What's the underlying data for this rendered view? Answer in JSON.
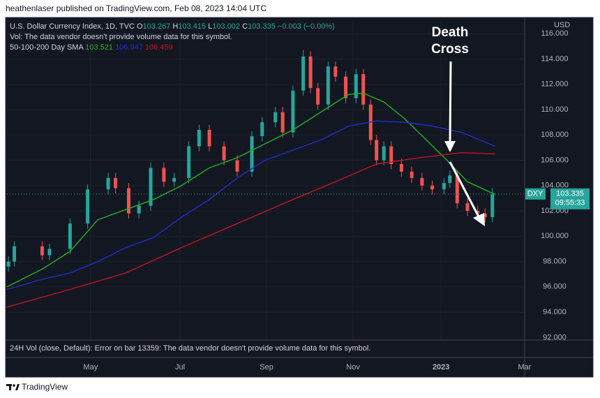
{
  "header": "heathenlaser published on TradingView.com, Feb 08, 2023 14:04 UTC",
  "footer": "TradingView",
  "chart_data": {
    "type": "candlestick",
    "symbol_title": "U.S. Dollar Currency Index, 1D, TVC",
    "ohlc_legend": [
      {
        "label": "O",
        "value": 103.267
      },
      {
        "label": "H",
        "value": 103.415
      },
      {
        "label": "L",
        "value": 103.002
      },
      {
        "label": "C",
        "value": 103.335
      }
    ],
    "change": "−0.003 (−0.00%)",
    "volume_note": "Vol: The data vendor doesn't provide volume data for this symbol.",
    "sma_label": "50-100-200 Day SMA",
    "volume_pane": "24H Vol (close, Default): Error on bar 13359: The data vendor doesn't provide volume data for this symbol.",
    "currency": "USD",
    "annotation": [
      "Death",
      "Cross"
    ],
    "last_price": 103.335,
    "last_price_tag": "DXY",
    "countdown": "09:55:33",
    "xlim": [
      0,
      353
    ],
    "ylim": [
      91.8,
      117
    ],
    "xticks": [
      {
        "value": 57,
        "label": "May"
      },
      {
        "value": 118,
        "label": "Jul"
      },
      {
        "value": 177,
        "label": "Sep"
      },
      {
        "value": 236,
        "label": "Nov"
      },
      {
        "value": 296,
        "label": "2023"
      },
      {
        "value": 353,
        "label": "Mar"
      }
    ],
    "yticks": [
      {
        "value": 92,
        "label": "92.000"
      },
      {
        "value": 94,
        "label": "94.000"
      },
      {
        "value": 96,
        "label": "96.000"
      },
      {
        "value": 98,
        "label": "98.000"
      },
      {
        "value": 100,
        "label": "100.000"
      },
      {
        "value": 102,
        "label": "102.000"
      },
      {
        "value": 104,
        "label": "104.000"
      },
      {
        "value": 106,
        "label": "106.000"
      },
      {
        "value": 108,
        "label": "108.000"
      },
      {
        "value": 110,
        "label": "110.000"
      },
      {
        "value": 112,
        "label": "112.000"
      },
      {
        "value": 114,
        "label": "114.000"
      },
      {
        "value": 116,
        "label": "116.000"
      }
    ],
    "grid": true,
    "up_color": "#26a69a",
    "down_color": "#ef5350",
    "x": [
      1,
      5,
      24,
      29,
      43,
      55,
      69,
      74,
      83,
      90,
      98,
      107,
      114,
      124,
      131,
      138,
      148,
      157,
      167,
      174,
      183,
      188,
      195,
      202,
      207,
      212,
      219,
      224,
      231,
      238,
      243,
      248,
      252,
      257,
      262,
      269,
      276,
      283,
      290,
      298,
      302,
      307,
      314,
      321,
      326,
      331
    ],
    "open": [
      97.6,
      98.0,
      99.2,
      98.5,
      99.0,
      101.0,
      103.7,
      104.6,
      103.8,
      101.8,
      102.4,
      105.4,
      104.3,
      104.6,
      107.1,
      108.4,
      107.1,
      106.0,
      105.1,
      107.9,
      109.0,
      109.8,
      108.2,
      111.5,
      114.2,
      111.7,
      110.4,
      113.4,
      112.6,
      110.9,
      112.8,
      110.4,
      107.6,
      106.0,
      107.1,
      105.7,
      105.1,
      104.6,
      104.0,
      103.7,
      104.2,
      104.8,
      102.6,
      102.0,
      101.8,
      101.5
    ],
    "high": [
      98.4,
      99.6,
      99.6,
      99.4,
      101.4,
      104.1,
      105.0,
      105.0,
      104.2,
      102.8,
      105.8,
      105.8,
      105.0,
      107.5,
      108.8,
      108.8,
      107.5,
      106.4,
      108.3,
      109.4,
      110.2,
      110.2,
      111.9,
      114.7,
      114.6,
      112.1,
      113.8,
      113.8,
      113.0,
      113.2,
      113.2,
      110.8,
      108.0,
      107.5,
      107.5,
      106.1,
      105.5,
      105.0,
      104.4,
      104.6,
      105.2,
      105.2,
      103.0,
      102.4,
      102.2,
      103.8
    ],
    "low": [
      97.2,
      97.6,
      98.1,
      98.1,
      98.6,
      100.6,
      103.3,
      103.4,
      101.4,
      101.4,
      102.0,
      103.9,
      103.9,
      104.2,
      106.7,
      106.7,
      105.6,
      104.7,
      104.7,
      107.5,
      108.6,
      107.8,
      107.8,
      111.1,
      111.3,
      110.0,
      110.0,
      112.2,
      110.5,
      110.5,
      110.0,
      107.2,
      105.6,
      105.6,
      105.3,
      104.7,
      104.2,
      103.6,
      103.3,
      103.3,
      103.8,
      102.2,
      101.6,
      101.4,
      101.1,
      101.1
    ],
    "close": [
      98.0,
      99.2,
      98.5,
      99.0,
      101.0,
      103.7,
      104.6,
      103.8,
      101.8,
      102.4,
      105.4,
      104.3,
      104.6,
      107.1,
      108.4,
      107.1,
      106.0,
      105.1,
      107.9,
      109.0,
      109.8,
      108.2,
      111.5,
      114.2,
      111.7,
      110.4,
      113.4,
      112.6,
      110.9,
      112.8,
      110.4,
      107.6,
      106.0,
      107.1,
      105.7,
      105.1,
      104.6,
      104.0,
      103.7,
      104.2,
      104.8,
      102.6,
      102.0,
      101.8,
      101.5,
      103.3
    ],
    "lines": [
      {
        "color": "#1fb51f",
        "legend_value": 103.521,
        "x": [
          0,
          24,
          43,
          62,
          81,
          100,
          119,
          138,
          157,
          176,
          195,
          214,
          233,
          243,
          257,
          271,
          286,
          300,
          314,
          329,
          333
        ],
        "values": [
          96.0,
          97.4,
          98.8,
          101.3,
          102.1,
          102.9,
          104.0,
          105.4,
          106.2,
          107.3,
          108.4,
          109.8,
          111.2,
          111.3,
          110.6,
          109.3,
          107.6,
          106.0,
          104.3,
          103.5,
          103.3
        ]
      },
      {
        "color": "#1f2fd0",
        "legend_value": 106.947,
        "x": [
          0,
          24,
          43,
          62,
          81,
          100,
          119,
          138,
          157,
          176,
          195,
          214,
          233,
          252,
          271,
          290,
          310,
          333
        ],
        "values": [
          95.8,
          96.6,
          97.1,
          98.0,
          99.1,
          99.9,
          101.5,
          102.9,
          104.6,
          106.0,
          106.8,
          107.6,
          108.7,
          109.1,
          109.0,
          108.7,
          108.2,
          107.1
        ]
      },
      {
        "color": "#c0171f",
        "legend_value": 106.459,
        "x": [
          0,
          43,
          81,
          119,
          157,
          195,
          224,
          252,
          281,
          310,
          333
        ],
        "values": [
          94.4,
          95.8,
          97.1,
          99.1,
          101.0,
          102.9,
          104.3,
          105.7,
          106.2,
          106.6,
          106.5
        ]
      }
    ]
  }
}
